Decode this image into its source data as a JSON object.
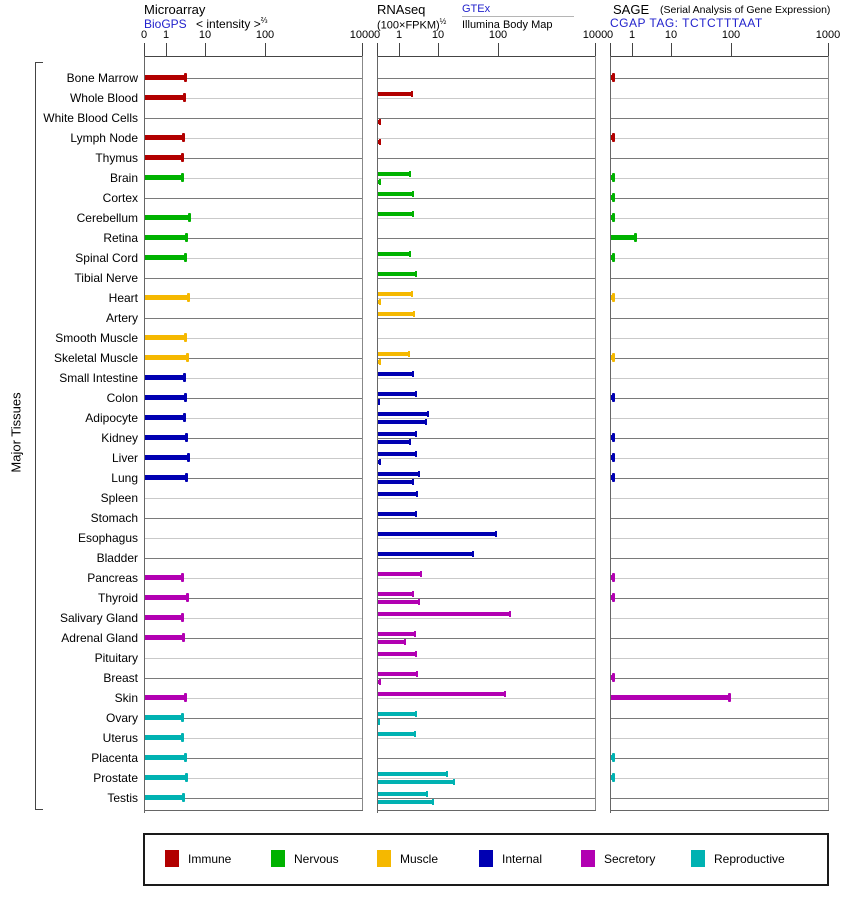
{
  "left_axis": {
    "group_label": "Major Tissues"
  },
  "axis": {
    "ticks": [
      "0",
      "1",
      "10",
      "100",
      "1000"
    ]
  },
  "panels": {
    "microarray": {
      "title": "Microarray",
      "source_link": "BioGPS",
      "measure": "< intensity >",
      "exponent": "⅔"
    },
    "rnaseq": {
      "title": "RNAseq",
      "measure": "(100×FPKM)",
      "exponent": "½",
      "source_link": "GTEx",
      "source2": "Illumina Body Map"
    },
    "sage": {
      "title": "SAGE",
      "title_note": "(Serial Analysis of Gene Expression)",
      "source_link": "CGAP TAG: TCTCTTTAAT"
    }
  },
  "legend": {
    "items": [
      {
        "label": "Immune",
        "color": "#b20000"
      },
      {
        "label": "Nervous",
        "color": "#00b200"
      },
      {
        "label": "Muscle",
        "color": "#f5b800"
      },
      {
        "label": "Internal",
        "color": "#0000b2"
      },
      {
        "label": "Secretory",
        "color": "#b200b2"
      },
      {
        "label": "Reproductive",
        "color": "#00b2b2"
      }
    ]
  },
  "chart_data": {
    "type": "bar",
    "orientation": "horizontal",
    "value_scale": "pseudo-log axis with ticks 0,1,10,100,1000",
    "series": [
      "Microarray BioGPS",
      "RNAseq GTEx",
      "RNAseq Illumina Body Map",
      "SAGE CGAP"
    ],
    "tissues": [
      {
        "name": "Bone Marrow",
        "category": "Immune",
        "microarray": 3.1,
        "rnaseq_gtex": null,
        "rnaseq_illumina": null,
        "sage": 0.15
      },
      {
        "name": "Whole Blood",
        "category": "Immune",
        "microarray": 2.9,
        "rnaseq_gtex": 2.1,
        "rnaseq_illumina": null,
        "sage": null
      },
      {
        "name": "White Blood Cells",
        "category": "Immune",
        "microarray": null,
        "rnaseq_gtex": null,
        "rnaseq_illumina": 0.15,
        "sage": null
      },
      {
        "name": "Lymph Node",
        "category": "Immune",
        "microarray": 2.8,
        "rnaseq_gtex": null,
        "rnaseq_illumina": 0.15,
        "sage": 0.15
      },
      {
        "name": "Thymus",
        "category": "Immune",
        "microarray": 2.6,
        "rnaseq_gtex": null,
        "rnaseq_illumina": null,
        "sage": null
      },
      {
        "name": "Brain",
        "category": "Nervous",
        "microarray": 2.6,
        "rnaseq_gtex": 1.9,
        "rnaseq_illumina": 0.15,
        "sage": 0.15
      },
      {
        "name": "Cortex",
        "category": "Nervous",
        "microarray": null,
        "rnaseq_gtex": 2.3,
        "rnaseq_illumina": null,
        "sage": 0.15
      },
      {
        "name": "Cerebellum",
        "category": "Nervous",
        "microarray": 4.0,
        "rnaseq_gtex": 2.3,
        "rnaseq_illumina": null,
        "sage": 0.15
      },
      {
        "name": "Retina",
        "category": "Nervous",
        "microarray": 3.2,
        "rnaseq_gtex": null,
        "rnaseq_illumina": null,
        "sage": 1.2
      },
      {
        "name": "Spinal Cord",
        "category": "Nervous",
        "microarray": 3.1,
        "rnaseq_gtex": 1.9,
        "rnaseq_illumina": null,
        "sage": 0.15
      },
      {
        "name": "Tibial Nerve",
        "category": "Nervous",
        "microarray": null,
        "rnaseq_gtex": 2.7,
        "rnaseq_illumina": null,
        "sage": null
      },
      {
        "name": "Heart",
        "category": "Muscle",
        "microarray": 3.7,
        "rnaseq_gtex": 2.2,
        "rnaseq_illumina": 0.15,
        "sage": 0.15
      },
      {
        "name": "Artery",
        "category": "Muscle",
        "microarray": null,
        "rnaseq_gtex": 2.4,
        "rnaseq_illumina": null,
        "sage": null
      },
      {
        "name": "Smooth Muscle",
        "category": "Muscle",
        "microarray": 3.1,
        "rnaseq_gtex": null,
        "rnaseq_illumina": null,
        "sage": null
      },
      {
        "name": "Skeletal Muscle",
        "category": "Muscle",
        "microarray": 3.5,
        "rnaseq_gtex": 1.8,
        "rnaseq_illumina": 0.15,
        "sage": 0.15
      },
      {
        "name": "Small Intestine",
        "category": "Internal",
        "microarray": 2.9,
        "rnaseq_gtex": 2.3,
        "rnaseq_illumina": null,
        "sage": null
      },
      {
        "name": "Colon",
        "category": "Internal",
        "microarray": 3.1,
        "rnaseq_gtex": 2.7,
        "rnaseq_illumina": 0.1,
        "sage": 0.15
      },
      {
        "name": "Adipocyte",
        "category": "Internal",
        "microarray": 2.95,
        "rnaseq_gtex": 5.5,
        "rnaseq_illumina": 4.8,
        "sage": null
      },
      {
        "name": "Kidney",
        "category": "Internal",
        "microarray": 3.3,
        "rnaseq_gtex": 2.7,
        "rnaseq_illumina": 1.9,
        "sage": 0.15
      },
      {
        "name": "Liver",
        "category": "Internal",
        "microarray": 3.7,
        "rnaseq_gtex": 2.7,
        "rnaseq_illumina": 0.15,
        "sage": 0.15
      },
      {
        "name": "Lung",
        "category": "Internal",
        "microarray": 3.3,
        "rnaseq_gtex": 3.3,
        "rnaseq_illumina": 2.3,
        "sage": 0.15
      },
      {
        "name": "Spleen",
        "category": "Internal",
        "microarray": null,
        "rnaseq_gtex": 2.9,
        "rnaseq_illumina": null,
        "sage": null
      },
      {
        "name": "Stomach",
        "category": "Internal",
        "microarray": null,
        "rnaseq_gtex": 2.7,
        "rnaseq_illumina": null,
        "sage": null
      },
      {
        "name": "Esophagus",
        "category": "Internal",
        "microarray": null,
        "rnaseq_gtex": 92,
        "rnaseq_illumina": null,
        "sage": null
      },
      {
        "name": "Bladder",
        "category": "Internal",
        "microarray": null,
        "rnaseq_gtex": 39,
        "rnaseq_illumina": null,
        "sage": null
      },
      {
        "name": "Pancreas",
        "category": "Secretory",
        "microarray": 2.5,
        "rnaseq_gtex": 3.7,
        "rnaseq_illumina": null,
        "sage": 0.15
      },
      {
        "name": "Thyroid",
        "category": "Secretory",
        "microarray": 3.5,
        "rnaseq_gtex": 2.3,
        "rnaseq_illumina": 3.3,
        "sage": 0.15
      },
      {
        "name": "Salivary Gland",
        "category": "Secretory",
        "microarray": 2.6,
        "rnaseq_gtex": 134,
        "rnaseq_illumina": null,
        "sage": null
      },
      {
        "name": "Adrenal Gland",
        "category": "Secretory",
        "microarray": 2.7,
        "rnaseq_gtex": 2.5,
        "rnaseq_illumina": 1.4,
        "sage": null
      },
      {
        "name": "Pituitary",
        "category": "Secretory",
        "microarray": null,
        "rnaseq_gtex": 2.7,
        "rnaseq_illumina": null,
        "sage": null
      },
      {
        "name": "Breast",
        "category": "Secretory",
        "microarray": null,
        "rnaseq_gtex": 2.9,
        "rnaseq_illumina": 0.15,
        "sage": 0.15
      },
      {
        "name": "Skin",
        "category": "Secretory",
        "microarray": 3.1,
        "rnaseq_gtex": 119,
        "rnaseq_illumina": null,
        "sage": 93
      },
      {
        "name": "Ovary",
        "category": "Reproductive",
        "microarray": 2.5,
        "rnaseq_gtex": 2.7,
        "rnaseq_illumina": 0.1,
        "sage": null
      },
      {
        "name": "Uterus",
        "category": "Reproductive",
        "microarray": 2.6,
        "rnaseq_gtex": 2.5,
        "rnaseq_illumina": null,
        "sage": null
      },
      {
        "name": "Placenta",
        "category": "Reproductive",
        "microarray": 3.1,
        "rnaseq_gtex": null,
        "rnaseq_illumina": null,
        "sage": 0.15
      },
      {
        "name": "Prostate",
        "category": "Reproductive",
        "microarray": 3.3,
        "rnaseq_gtex": 14,
        "rnaseq_illumina": 18.5,
        "sage": 0.15
      },
      {
        "name": "Testis",
        "category": "Reproductive",
        "microarray": 2.8,
        "rnaseq_gtex": 5.3,
        "rnaseq_illumina": 7.6,
        "sage": null
      }
    ]
  }
}
